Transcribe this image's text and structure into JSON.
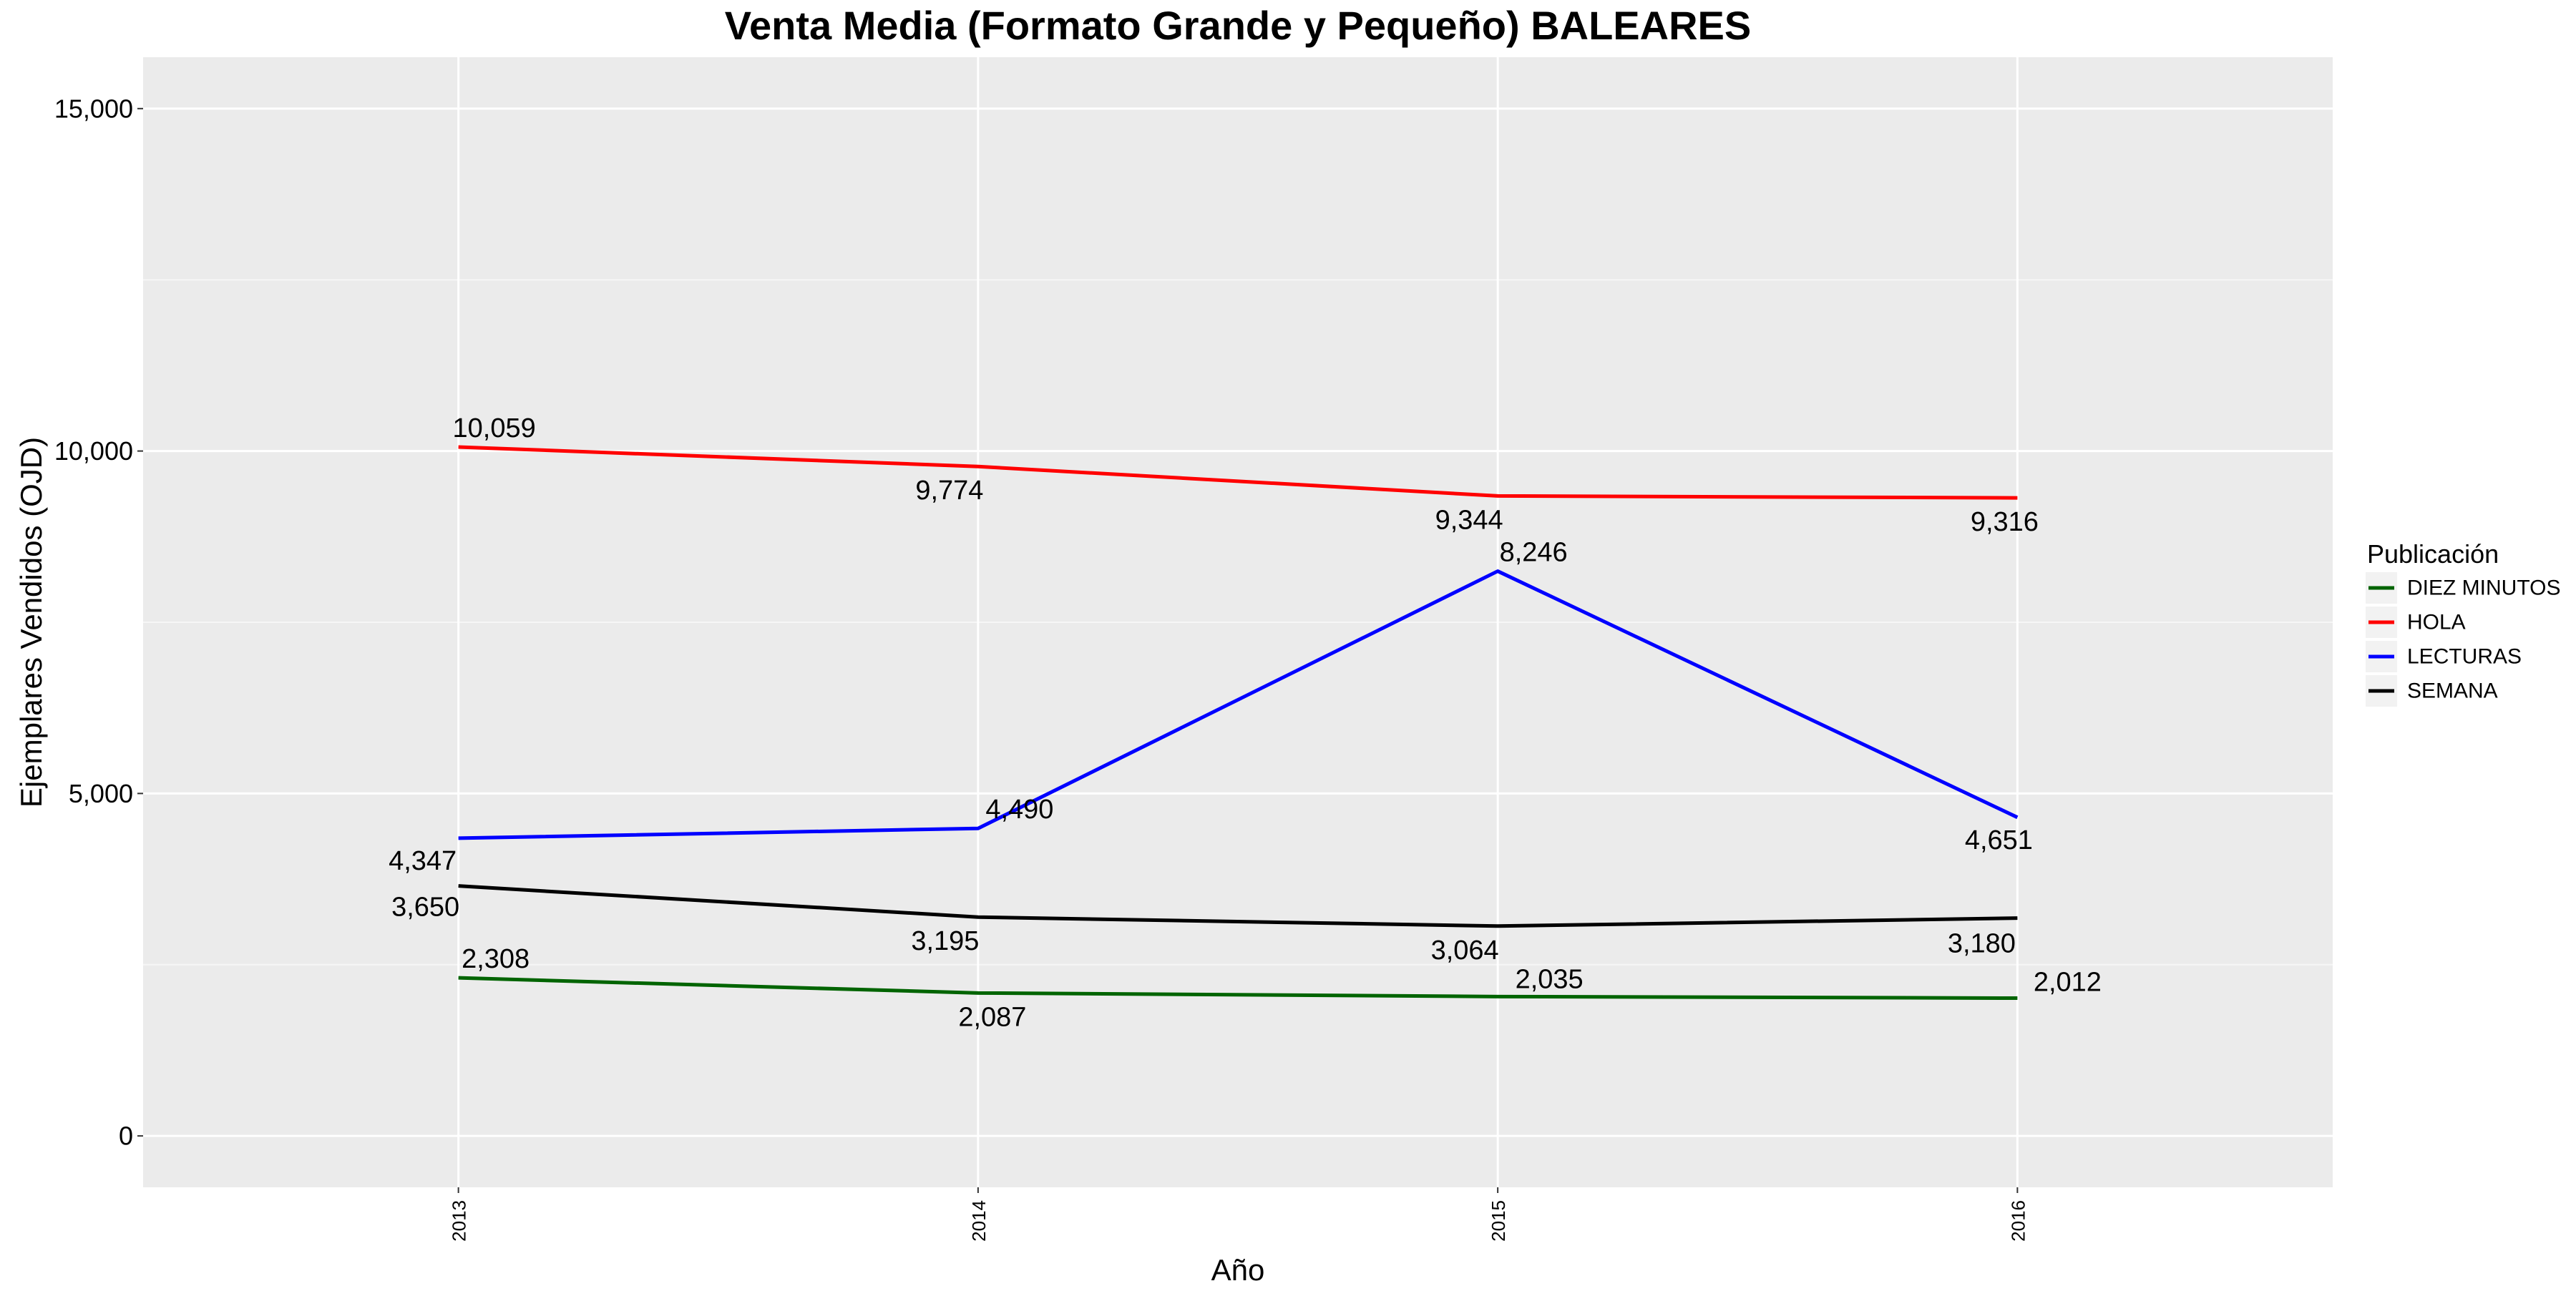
{
  "chart_data": {
    "type": "line",
    "title": "Venta Media (Formato Grande y Pequeño)  BALEARES",
    "xlabel": "Año",
    "ylabel": "Ejemplares Vendidos (OJD)",
    "categories": [
      "2013",
      "2014",
      "2015",
      "2016"
    ],
    "ylim": [
      -750,
      15750
    ],
    "yticks": [
      {
        "value": 0,
        "label": "0"
      },
      {
        "value": 5000,
        "label": "5,000"
      },
      {
        "value": 10000,
        "label": "10,000"
      },
      {
        "value": 15000,
        "label": "15,000"
      }
    ],
    "grid": true,
    "legend": {
      "title": "Publicación",
      "position": "right"
    },
    "series": [
      {
        "name": "DIEZ MINUTOS",
        "color": "#006400",
        "values": [
          2308,
          2087,
          2035,
          2012
        ],
        "labels": [
          "2,308",
          "2,087",
          "2,035",
          "2,012"
        ]
      },
      {
        "name": "HOLA",
        "color": "#ff0000",
        "values": [
          10059,
          9774,
          9344,
          9316
        ],
        "labels": [
          "10,059",
          "9,774",
          "9,344",
          "9,316"
        ]
      },
      {
        "name": "LECTURAS",
        "color": "#0000ff",
        "values": [
          4347,
          4490,
          8246,
          4651
        ],
        "labels": [
          "4,347",
          "4,490",
          "8,246",
          "4,651"
        ]
      },
      {
        "name": "SEMANA",
        "color": "#000000",
        "values": [
          3650,
          3195,
          3064,
          3180
        ],
        "labels": [
          "3,650",
          "3,195",
          "3,064",
          "3,180"
        ]
      }
    ]
  }
}
